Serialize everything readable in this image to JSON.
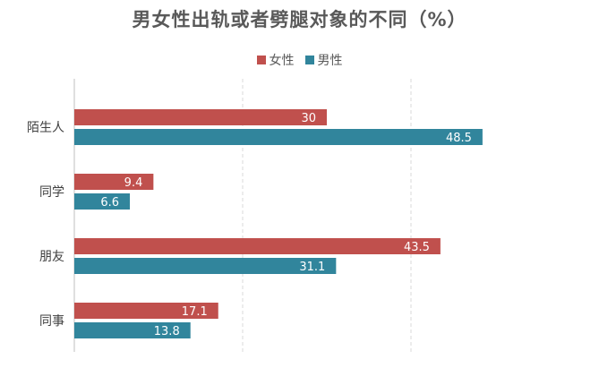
{
  "chart_data": {
    "type": "bar",
    "orientation": "horizontal",
    "title": "男女性出轨或者劈腿对象的不同（%）",
    "xlabel": "",
    "ylabel": "",
    "categories": [
      "陌生人",
      "同学",
      "朋友",
      "同事"
    ],
    "series": [
      {
        "name": "女性",
        "color": "#c0504d",
        "values": [
          30,
          9.4,
          43.5,
          17.1
        ]
      },
      {
        "name": "男性",
        "color": "#31859c",
        "values": [
          48.5,
          6.6,
          31.1,
          13.8
        ]
      }
    ],
    "xlim": [
      0,
      60
    ],
    "grid": true,
    "legend_position": "top-center",
    "data_labels": true
  }
}
